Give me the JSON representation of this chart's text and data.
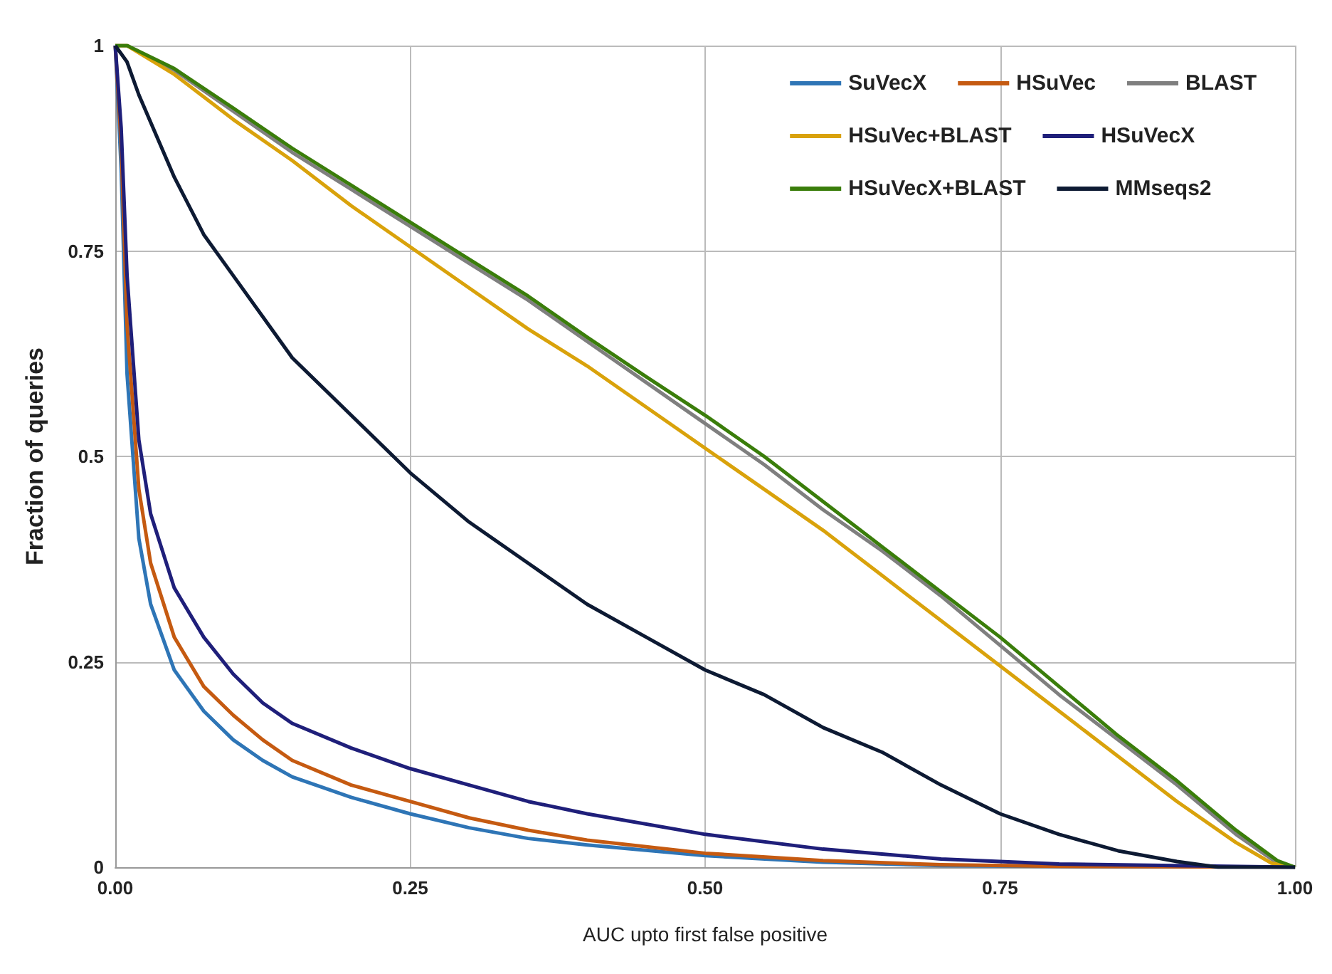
{
  "chart_data": {
    "type": "line",
    "xlabel": "AUC upto first false positive",
    "ylabel": "Fraction of queries",
    "xlim": [
      0,
      1
    ],
    "ylim": [
      0,
      1
    ],
    "xticks": [
      {
        "value": 0,
        "label": "0.00"
      },
      {
        "value": 0.25,
        "label": "0.25"
      },
      {
        "value": 0.5,
        "label": "0.50"
      },
      {
        "value": 0.75,
        "label": "0.75"
      },
      {
        "value": 1,
        "label": "1.00"
      }
    ],
    "yticks": [
      0,
      0.25,
      0.5,
      0.75,
      1
    ],
    "grid": true,
    "legend": "top right",
    "marker": "none",
    "line_style": "solid",
    "series": [
      {
        "name": "SuVecX",
        "color": "#2e75b6",
        "x": [
          0,
          0.005,
          0.01,
          0.02,
          0.03,
          0.05,
          0.075,
          0.1,
          0.125,
          0.15,
          0.2,
          0.25,
          0.3,
          0.35,
          0.4,
          0.5,
          0.6,
          0.7,
          0.8,
          1
        ],
        "values": [
          1,
          0.85,
          0.6,
          0.4,
          0.32,
          0.24,
          0.19,
          0.155,
          0.13,
          0.11,
          0.085,
          0.065,
          0.048,
          0.035,
          0.027,
          0.014,
          0.006,
          0.002,
          0.001,
          0
        ]
      },
      {
        "name": "HSuVec",
        "color": "#c55a11",
        "x": [
          0,
          0.005,
          0.01,
          0.02,
          0.03,
          0.05,
          0.075,
          0.1,
          0.125,
          0.15,
          0.2,
          0.25,
          0.3,
          0.35,
          0.4,
          0.5,
          0.6,
          0.7,
          0.8,
          1
        ],
        "values": [
          1,
          0.88,
          0.66,
          0.46,
          0.37,
          0.28,
          0.22,
          0.185,
          0.155,
          0.13,
          0.1,
          0.08,
          0.06,
          0.045,
          0.033,
          0.017,
          0.008,
          0.003,
          0.001,
          0
        ]
      },
      {
        "name": "BLAST",
        "color": "#7f7f7f",
        "x": [
          0,
          0.01,
          0.05,
          0.1,
          0.15,
          0.2,
          0.25,
          0.3,
          0.35,
          0.4,
          0.45,
          0.5,
          0.55,
          0.6,
          0.65,
          0.7,
          0.75,
          0.8,
          0.85,
          0.9,
          0.95,
          0.985,
          1
        ],
        "values": [
          1,
          1,
          0.97,
          0.92,
          0.87,
          0.825,
          0.78,
          0.735,
          0.69,
          0.64,
          0.59,
          0.54,
          0.49,
          0.435,
          0.385,
          0.33,
          0.27,
          0.21,
          0.155,
          0.1,
          0.04,
          0.005,
          0
        ]
      },
      {
        "name": "HSuVec+BLAST",
        "color": "#d9a20b",
        "x": [
          0,
          0.01,
          0.05,
          0.1,
          0.15,
          0.2,
          0.25,
          0.3,
          0.35,
          0.4,
          0.45,
          0.5,
          0.55,
          0.6,
          0.65,
          0.7,
          0.75,
          0.8,
          0.85,
          0.9,
          0.95,
          0.98,
          1
        ],
        "values": [
          1,
          1,
          0.965,
          0.91,
          0.86,
          0.805,
          0.755,
          0.705,
          0.655,
          0.61,
          0.56,
          0.51,
          0.46,
          0.41,
          0.355,
          0.3,
          0.245,
          0.19,
          0.135,
          0.08,
          0.03,
          0.005,
          0
        ]
      },
      {
        "name": "HSuVecX",
        "color": "#1f1f7a",
        "x": [
          0,
          0.005,
          0.01,
          0.02,
          0.03,
          0.05,
          0.075,
          0.1,
          0.125,
          0.15,
          0.2,
          0.25,
          0.3,
          0.35,
          0.4,
          0.5,
          0.6,
          0.7,
          0.8,
          1
        ],
        "values": [
          1,
          0.9,
          0.72,
          0.52,
          0.43,
          0.34,
          0.28,
          0.235,
          0.2,
          0.175,
          0.145,
          0.12,
          0.1,
          0.08,
          0.065,
          0.04,
          0.022,
          0.01,
          0.004,
          0
        ]
      },
      {
        "name": "HSuVecX+BLAST",
        "color": "#3a7d0a",
        "x": [
          0,
          0.01,
          0.05,
          0.1,
          0.15,
          0.2,
          0.25,
          0.3,
          0.35,
          0.4,
          0.45,
          0.5,
          0.55,
          0.6,
          0.65,
          0.7,
          0.75,
          0.8,
          0.85,
          0.9,
          0.95,
          0.985,
          1
        ],
        "values": [
          1,
          1,
          0.972,
          0.924,
          0.875,
          0.83,
          0.785,
          0.74,
          0.695,
          0.645,
          0.597,
          0.55,
          0.5,
          0.445,
          0.39,
          0.335,
          0.28,
          0.22,
          0.16,
          0.105,
          0.045,
          0.008,
          0
        ]
      },
      {
        "name": "MMseqs2",
        "color": "#0d1a33",
        "x": [
          0,
          0.01,
          0.02,
          0.05,
          0.075,
          0.1,
          0.125,
          0.15,
          0.2,
          0.25,
          0.3,
          0.35,
          0.4,
          0.45,
          0.5,
          0.55,
          0.6,
          0.65,
          0.7,
          0.75,
          0.8,
          0.85,
          0.9,
          0.935,
          1
        ],
        "values": [
          1,
          0.98,
          0.94,
          0.84,
          0.77,
          0.72,
          0.67,
          0.62,
          0.55,
          0.48,
          0.42,
          0.37,
          0.32,
          0.28,
          0.24,
          0.21,
          0.17,
          0.14,
          0.1,
          0.065,
          0.04,
          0.02,
          0.007,
          0,
          0
        ]
      }
    ]
  }
}
